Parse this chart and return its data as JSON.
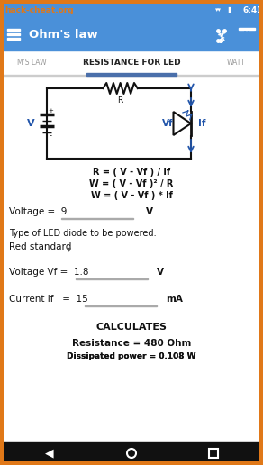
{
  "status_bar_bg": "#4a90d9",
  "status_bar_text": "6:41",
  "watermark_text": "hack-cheat.org",
  "watermark_color": "#e07818",
  "toolbar_bg": "#4a90d9",
  "toolbar_title": "Ohm's law",
  "tab_active": "RESISTANCE FOR LED",
  "tab_left": "M'S LAW",
  "tab_right": "WATT",
  "tab_underline_color": "#4a6faa",
  "formula1": "R = ( V - Vf ) / If",
  "formula2": "W = ( V - Vf )² / R",
  "formula3": "W = ( V - Vf ) * If",
  "label_voltage": "Voltage =  9",
  "unit_voltage": "V",
  "label_led_type": "Type of LED diode to be powered:",
  "led_type_value": "Red standard",
  "label_vf": "Voltage Vf =  1.8",
  "unit_vf": "V",
  "label_if": "Current If   =  15",
  "unit_if": "mA",
  "btn_text": "CALCULATES",
  "result1_label": "Resistance = 480 Ohm",
  "result2_label": "Dissipated power = 0.108 W",
  "body_bg": "#f5f5f5",
  "text_color": "#111111",
  "value_color": "#111111",
  "input_underline_color": "#aaaaaa",
  "circuit_color": "#111111",
  "arrow_color": "#2255aa",
  "nav_bar_bg": "#111111",
  "nav_bar_icon_color": "#ffffff",
  "orange_border": "#e07818"
}
